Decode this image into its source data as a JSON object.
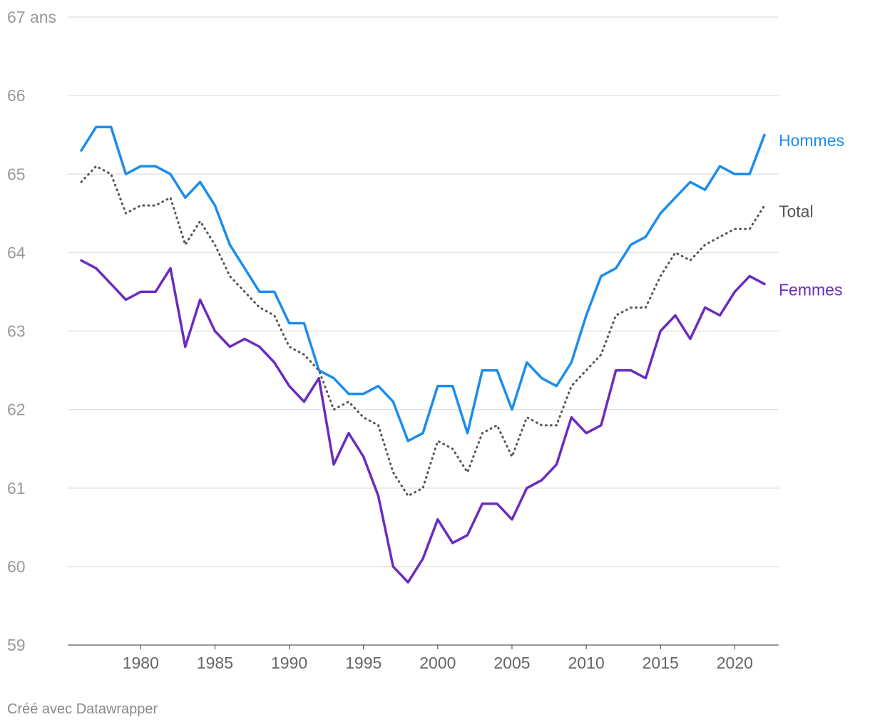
{
  "chart_data": {
    "type": "line",
    "y_unit_label": "67 ans",
    "ylim": [
      59,
      67
    ],
    "y_ticks": [
      {
        "value": 67,
        "label": "67 ans"
      },
      {
        "value": 66,
        "label": "66"
      },
      {
        "value": 65,
        "label": "65"
      },
      {
        "value": 64,
        "label": "64"
      },
      {
        "value": 63,
        "label": "63"
      },
      {
        "value": 62,
        "label": "62"
      },
      {
        "value": 61,
        "label": "61"
      },
      {
        "value": 60,
        "label": "60"
      },
      {
        "value": 59,
        "label": "59"
      }
    ],
    "x_ticks": [
      "1980",
      "1985",
      "1990",
      "1995",
      "2000",
      "2005",
      "2010",
      "2015",
      "2020"
    ],
    "x": [
      1976,
      1977,
      1978,
      1979,
      1980,
      1981,
      1982,
      1983,
      1984,
      1985,
      1986,
      1987,
      1988,
      1989,
      1990,
      1991,
      1992,
      1993,
      1994,
      1995,
      1996,
      1997,
      1998,
      1999,
      2000,
      2001,
      2002,
      2003,
      2004,
      2005,
      2006,
      2007,
      2008,
      2009,
      2010,
      2011,
      2012,
      2013,
      2014,
      2015,
      2016,
      2017,
      2018,
      2019,
      2020,
      2021,
      2022
    ],
    "grid": true,
    "series": [
      {
        "name": "Hommes",
        "color": "#1b8ded",
        "style": "solid",
        "values": [
          65.3,
          65.6,
          65.6,
          65.0,
          65.1,
          65.1,
          65.0,
          64.7,
          64.9,
          64.6,
          64.1,
          63.8,
          63.5,
          63.5,
          63.1,
          63.1,
          62.5,
          62.4,
          62.2,
          62.2,
          62.3,
          62.1,
          61.6,
          61.7,
          62.3,
          62.3,
          61.7,
          62.5,
          62.5,
          62.0,
          62.6,
          62.4,
          62.3,
          62.6,
          63.2,
          63.7,
          63.8,
          64.1,
          64.2,
          64.5,
          64.7,
          64.9,
          64.8,
          65.1,
          65.0,
          65.0,
          65.5
        ]
      },
      {
        "name": "Total",
        "color": "#555555",
        "style": "dotted",
        "values": [
          64.9,
          65.1,
          65.0,
          64.5,
          64.6,
          64.6,
          64.7,
          64.1,
          64.4,
          64.1,
          63.7,
          63.5,
          63.3,
          63.2,
          62.8,
          62.7,
          62.5,
          62.0,
          62.1,
          61.9,
          61.8,
          61.2,
          60.9,
          61.0,
          61.6,
          61.5,
          61.2,
          61.7,
          61.8,
          61.4,
          61.9,
          61.8,
          61.8,
          62.3,
          62.5,
          62.7,
          63.2,
          63.3,
          63.3,
          63.7,
          64.0,
          63.9,
          64.1,
          64.2,
          64.3,
          64.3,
          64.6
        ]
      },
      {
        "name": "Femmes",
        "color": "#6a2cbf",
        "style": "solid",
        "values": [
          63.9,
          63.8,
          63.6,
          63.4,
          63.5,
          63.5,
          63.8,
          62.8,
          63.4,
          63.0,
          62.8,
          62.9,
          62.8,
          62.6,
          62.3,
          62.1,
          62.4,
          61.3,
          61.7,
          61.4,
          60.9,
          60.0,
          59.8,
          60.1,
          60.6,
          60.3,
          60.4,
          60.8,
          60.8,
          60.6,
          61.0,
          61.1,
          61.3,
          61.9,
          61.7,
          61.8,
          62.5,
          62.5,
          62.4,
          63.0,
          63.2,
          62.9,
          63.3,
          63.2,
          63.5,
          63.7,
          63.6
        ]
      }
    ]
  },
  "footer": {
    "credit": "Créé avec Datawrapper"
  }
}
